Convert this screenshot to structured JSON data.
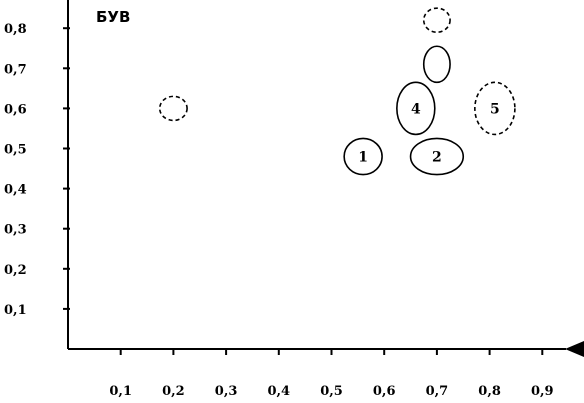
{
  "chart_data": {
    "type": "scatter",
    "title": "БУВ",
    "xlabel": "",
    "ylabel": "",
    "xlim": [
      0.0,
      0.96
    ],
    "ylim": [
      0.0,
      0.84
    ],
    "x_ticks": [
      "0,1",
      "0,2",
      "0,3",
      "0,4",
      "0,5",
      "0,6",
      "0,7",
      "0,8",
      "0,9"
    ],
    "y_ticks": [
      "0,1",
      "0,2",
      "0,3",
      "0,4",
      "0,5",
      "0,6",
      "0,7",
      "0,8"
    ],
    "grid": false,
    "legend": "none",
    "points": [
      {
        "label": "1",
        "x": 0.56,
        "y": 0.48,
        "rx": 0.036,
        "ry": 0.045,
        "style": "solid"
      },
      {
        "label": "2",
        "x": 0.7,
        "y": 0.48,
        "rx": 0.05,
        "ry": 0.045,
        "style": "solid"
      },
      {
        "label": "4",
        "x": 0.66,
        "y": 0.6,
        "rx": 0.036,
        "ry": 0.065,
        "style": "solid"
      },
      {
        "label": "5",
        "x": 0.81,
        "y": 0.6,
        "rx": 0.038,
        "ry": 0.065,
        "style": "dashed"
      },
      {
        "label": "",
        "x": 0.7,
        "y": 0.71,
        "rx": 0.025,
        "ry": 0.045,
        "style": "solid"
      },
      {
        "label": "",
        "x": 0.7,
        "y": 0.82,
        "rx": 0.025,
        "ry": 0.03,
        "style": "dashed"
      },
      {
        "label": "",
        "x": 0.2,
        "y": 0.6,
        "rx": 0.026,
        "ry": 0.03,
        "style": "dashed"
      }
    ]
  }
}
